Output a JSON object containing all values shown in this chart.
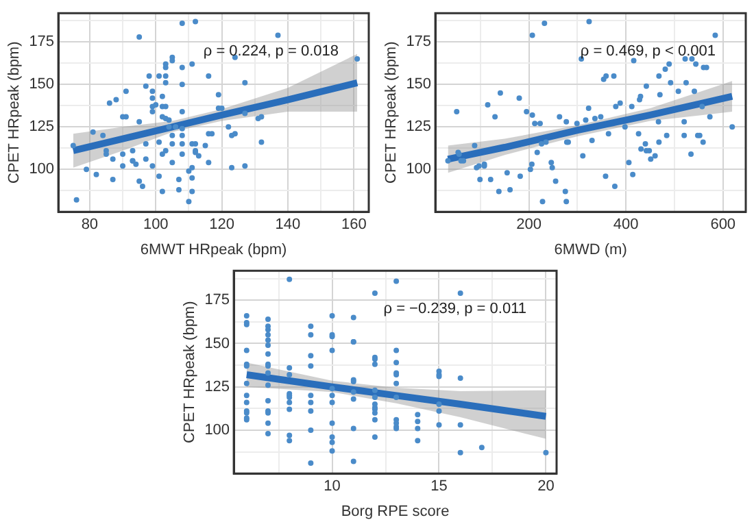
{
  "chart_data": [
    {
      "type": "scatter",
      "xlabel": "6MWT HRpeak (bpm)",
      "ylabel": "CPET HRpeak (bpm)",
      "annotations": [
        "ρ = 0.224, p = 0.018"
      ],
      "xlim": [
        70.5,
        164.5
      ],
      "ylim": [
        75,
        192
      ],
      "xticks": [
        80,
        {
          "value": 90,
          "label": null
        },
        100,
        {
          "value": 110,
          "label": null
        },
        120,
        {
          "value": 130,
          "label": null
        },
        140,
        {
          "value": 150,
          "label": null
        },
        160
      ],
      "yticks": [
        {
          "value": 87.5,
          "label": null
        },
        100,
        {
          "value": 112.5,
          "label": null
        },
        125,
        {
          "value": 137.5,
          "label": null
        },
        150,
        {
          "value": 162.5,
          "label": null
        },
        175,
        {
          "value": 187.5,
          "label": null
        }
      ],
      "grid": true,
      "series": [
        {
          "type": "scatter",
          "marker": "circle",
          "color": "#4a8bc9",
          "x": [
            75,
            76,
            79,
            81,
            82,
            84,
            85,
            85,
            86,
            87,
            87,
            88,
            90,
            91,
            90,
            90,
            91,
            93,
            93,
            93,
            94,
            95,
            95,
            96,
            95,
            97,
            97,
            97,
            98,
            99,
            99,
            99,
            99,
            99,
            100,
            101,
            101,
            101,
            102,
            102,
            103,
            102,
            102,
            102,
            103,
            103,
            103,
            104,
            104,
            103,
            103,
            103,
            105,
            105,
            105,
            105,
            105,
            106,
            107,
            107,
            108,
            108,
            108,
            108,
            108,
            108,
            108,
            108,
            110,
            111,
            110,
            111,
            111,
            111,
            111,
            112,
            112,
            112,
            112,
            113,
            115,
            116,
            116,
            116,
            117,
            119,
            119,
            120,
            122,
            123,
            123,
            124,
            124,
            127,
            127,
            127,
            131,
            132,
            132,
            137,
            161
          ],
          "values": [
            114,
            82,
            100,
            122,
            97,
            120,
            111,
            109,
            139,
            94,
            106,
            141,
            131,
            131,
            102,
            109,
            146,
            111,
            105,
            105,
            103,
            128,
            93,
            90,
            178,
            106,
            115,
            149,
            155,
            146,
            142,
            137,
            134,
            102,
            138,
            155,
            96,
            116,
            143,
            137,
            137,
            87,
            109,
            131,
            155,
            162,
            130,
            129,
            125,
            111,
            160,
            151,
            166,
            164,
            120,
            104,
            115,
            125,
            94,
            88,
            186,
            160,
            150,
            134,
            124,
            120,
            115,
            109,
            81,
            115,
            99,
            162,
            101,
            87,
            95,
            187,
            111,
            110,
            115,
            108,
            114,
            155,
            104,
            121,
            121,
            144,
            136,
            136,
            125,
            120,
            101,
            166,
            121,
            151,
            102,
            133,
            130,
            116,
            131,
            179,
            165
          ]
        },
        {
          "type": "line",
          "marker": "none",
          "color": "#2a6ebb",
          "x": [
            75,
            90,
            105,
            120,
            140,
            161
          ],
          "values": [
            111,
            118,
            125,
            132,
            141,
            151
          ],
          "lower": [
            101,
            111,
            122,
            128.5,
            134,
            134
          ],
          "upper": [
            121,
            125,
            128.5,
            135.5,
            148,
            168
          ]
        }
      ]
    },
    {
      "type": "scatter",
      "xlabel": "6MWD (m)",
      "ylabel": "CPET HRpeak (bpm)",
      "annotations": [
        "ρ = 0.469, p < 0.001"
      ],
      "xlim": [
        7,
        647
      ],
      "ylim": [
        75,
        192
      ],
      "xticks": [
        {
          "value": 100,
          "label": null
        },
        200,
        {
          "value": 300,
          "label": null
        },
        400,
        {
          "value": 500,
          "label": null
        },
        600
      ],
      "yticks": [
        {
          "value": 87.5,
          "label": null
        },
        100,
        {
          "value": 112.5,
          "label": null
        },
        125,
        {
          "value": 137.5,
          "label": null
        },
        150,
        {
          "value": 162.5,
          "label": null
        },
        175,
        {
          "value": 187.5,
          "label": null
        }
      ],
      "grid": true,
      "series": [
        {
          "type": "scatter",
          "marker": "circle",
          "color": "#4a8bc9",
          "x": [
            33,
            51,
            54,
            56,
            60,
            65,
            88,
            92,
            97,
            99,
            108,
            108,
            115,
            121,
            130,
            138,
            141,
            155,
            161,
            180,
            182,
            195,
            203,
            206,
            207,
            212,
            207,
            217,
            223,
            226,
            228,
            232,
            235,
            246,
            248,
            255,
            263,
            275,
            277,
            277,
            278,
            281,
            299,
            308,
            311,
            317,
            323,
            324,
            330,
            336,
            348,
            354,
            358,
            359,
            364,
            375,
            377,
            379,
            388,
            398,
            406,
            412,
            414,
            416,
            426,
            428,
            430,
            431,
            440,
            442,
            448,
            442,
            451,
            460,
            468,
            470,
            467,
            468,
            481,
            484,
            489,
            492,
            508,
            520,
            520,
            522,
            524,
            534,
            536,
            541,
            544,
            548,
            552,
            557,
            559,
            560,
            566,
            573,
            584,
            619
          ],
          "values": [
            105,
            134,
            110,
            109,
            105,
            105,
            114,
            101,
            102,
            94,
            103,
            102,
            138,
            94,
            131,
            87,
            145,
            98,
            88,
            142,
            96,
            134,
            100,
            103,
            132,
            127,
            179,
            110,
            127,
            115,
            81,
            186,
            116,
            104,
            101,
            93,
            131,
            87,
            128,
            81,
            116,
            116,
            127,
            165,
            108,
            129,
            136,
            187,
            117,
            130,
            131,
            153,
            96,
            155,
            121,
            155,
            90,
            137,
            139,
            125,
            104,
            137,
            97,
            164,
            121,
            141,
            143,
            112,
            115,
            111,
            111,
            149,
            106,
            108,
            155,
            144,
            128,
            116,
            159,
            120,
            162,
            151,
            146,
            128,
            120,
            165,
            151,
            109,
            165,
            146,
            162,
            120,
            120,
            137,
            116,
            160,
            160,
            131,
            179,
            125
          ]
        },
        {
          "type": "line",
          "marker": "none",
          "color": "#2a6ebb",
          "x": [
            33,
            150,
            300,
            450,
            619
          ],
          "values": [
            106,
            113,
            123,
            132,
            143
          ],
          "lower": [
            98,
            108.5,
            119.5,
            128.5,
            134
          ],
          "upper": [
            114,
            118,
            126,
            136,
            152
          ]
        }
      ]
    },
    {
      "type": "scatter",
      "xlabel": "Borg RPE score",
      "ylabel": "CPET HRpeak (bpm)",
      "annotations": [
        "ρ = −0.239, p = 0.011"
      ],
      "xlim": [
        5.4,
        20.5
      ],
      "ylim": [
        75,
        192
      ],
      "xticks": [
        {
          "value": 7.5,
          "label": null
        },
        10,
        {
          "value": 12.5,
          "label": null
        },
        15,
        {
          "value": 17.5,
          "label": null
        },
        20
      ],
      "yticks": [
        {
          "value": 87.5,
          "label": null
        },
        100,
        {
          "value": 112.5,
          "label": null
        },
        125,
        {
          "value": 137.5,
          "label": null
        },
        150,
        {
          "value": 162.5,
          "label": null
        },
        175,
        {
          "value": 187.5,
          "label": null
        }
      ],
      "grid": true,
      "series": [
        {
          "type": "scatter",
          "marker": "circle",
          "color": "#4a8bc9",
          "x": [
            6,
            6,
            6,
            6,
            6,
            6,
            6,
            6,
            6,
            6,
            6,
            6,
            6,
            7,
            7,
            7,
            7,
            7,
            7,
            7,
            7,
            7,
            7,
            7,
            7,
            7,
            7,
            7,
            7,
            8,
            8,
            8,
            8,
            8,
            8,
            8,
            8,
            8,
            8,
            9,
            9,
            9,
            9,
            9,
            9,
            9,
            9,
            9,
            10,
            10,
            10,
            10,
            10,
            10,
            10,
            10,
            10,
            10,
            10,
            11,
            11,
            11,
            11,
            11,
            11,
            11,
            11,
            11,
            12,
            12,
            12,
            12,
            12,
            12,
            12,
            12,
            12,
            12,
            12,
            12,
            13,
            13,
            13,
            13,
            13,
            13,
            13,
            13,
            13,
            13,
            13,
            14,
            14,
            14,
            14,
            15,
            15,
            15,
            15,
            15,
            15,
            16,
            16,
            16,
            16,
            17,
            20
          ],
          "values": [
            166,
            162,
            161,
            146,
            138,
            137,
            127,
            120,
            116,
            111,
            110,
            107,
            106,
            164,
            160,
            158,
            155,
            152,
            149,
            144,
            138,
            137,
            133,
            126,
            117,
            111,
            110,
            104,
            98,
            187,
            136,
            132,
            121,
            120,
            119,
            116,
            112,
            97,
            94,
            160,
            155,
            143,
            137,
            120,
            116,
            111,
            100,
            81,
            166,
            155,
            154,
            146,
            124,
            120,
            116,
            104,
            96,
            93,
            88,
            165,
            151,
            151,
            129,
            128,
            122,
            118,
            101,
            82,
            179,
            142,
            141,
            138,
            123,
            119,
            115,
            113,
            112,
            110,
            106,
            96,
            186,
            146,
            139,
            133,
            132,
            127,
            119,
            106,
            104,
            102,
            101,
            109,
            105,
            101,
            94,
            134,
            132,
            131,
            115,
            111,
            103,
            179,
            130,
            103,
            87,
            90,
            87
          ]
        },
        {
          "type": "line",
          "marker": "none",
          "color": "#2a6ebb",
          "x": [
            6,
            10,
            13,
            16,
            20
          ],
          "values": [
            132,
            125,
            120,
            115,
            108
          ],
          "lower": [
            125,
            122,
            115.5,
            107.5,
            95
          ],
          "upper": [
            139,
            128.5,
            124.5,
            122.5,
            123
          ]
        }
      ]
    }
  ]
}
